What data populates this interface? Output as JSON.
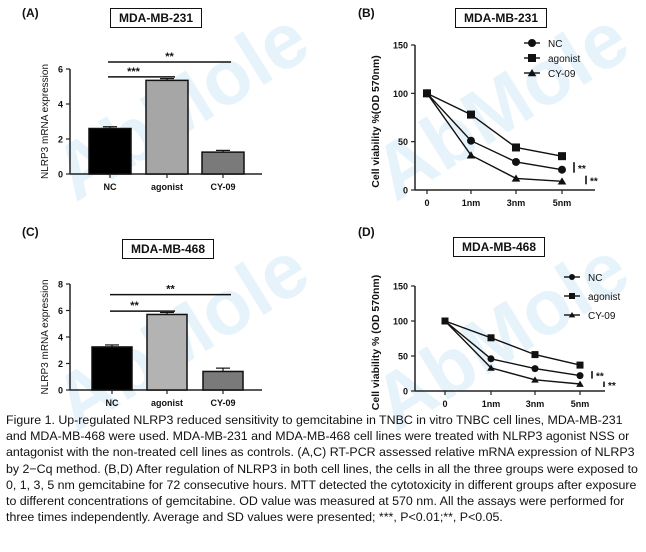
{
  "watermark": "AbMole",
  "panels": [
    {
      "label": "(A)",
      "title": "MDA-MB-231"
    },
    {
      "label": "(B)",
      "title": "MDA-MB-231"
    },
    {
      "label": "(C)",
      "title": "MDA-MB-468"
    },
    {
      "label": "(D)",
      "title": "MDA-MB-468"
    }
  ],
  "caption": "Figure 1. Up-regulated NLRP3 reduced sensitivity to gemcitabine in TNBC in vitro TNBC cell lines, MDA-MB-231 and MDA-MB-468 were used. MDA-MB-231 and MDA-MB-468 cell lines were treated with NLRP3 agonist NSS or antagonist with the non-treated cell lines as controls. (A,C) RT-PCR assessed relative mRNA expression of NLRP3 by 2−Cq method. (B,D) After regulation of NLRP3 in both cell lines, the cells in all the three groups were exposed to 0, 1, 3, 5 nm gemcitabine for 72 consecutive hours. MTT detected the cytotoxicity in different groups after exposure to different concentrations of gemcitabine. OD value was measured at 570 nm. All the assays were performed for three times independently. Average and SD values were presented; ***, P<0.01;**, P<0.05.",
  "chart_data": [
    {
      "type": "bar",
      "title": "MDA-MB-231",
      "panel": "(A)",
      "categories": [
        "NC",
        "agonist",
        "CY-09"
      ],
      "values": [
        2.6,
        5.35,
        1.25
      ],
      "errors": [
        0.1,
        0.1,
        0.1
      ],
      "colors": [
        "#000000",
        "#a6a6a6",
        "#7a7a7a"
      ],
      "ylabel": "NLRP3 mRNA expression",
      "xlabel": "",
      "ylim": [
        0,
        6
      ],
      "yticks": [
        0,
        2,
        4,
        6
      ],
      "significance": [
        {
          "from": 0,
          "to": 1,
          "label": "***",
          "y": 5.55
        },
        {
          "from": 0,
          "to": 2,
          "label": "**",
          "y": 6.4
        }
      ]
    },
    {
      "type": "line",
      "title": "MDA-MB-231",
      "panel": "(B)",
      "x": [
        "0",
        "1nm",
        "3nm",
        "5nm"
      ],
      "series": [
        {
          "name": "NC",
          "marker": "circle",
          "values": [
            100,
            51,
            29,
            21
          ]
        },
        {
          "name": "agonist",
          "marker": "square",
          "values": [
            100,
            78,
            44,
            35
          ]
        },
        {
          "name": "CY-09",
          "marker": "triangle",
          "values": [
            100,
            36,
            12,
            9
          ]
        }
      ],
      "ylabel": "Cell viability %(OD 570nm)",
      "xlabel": "",
      "ylim": [
        0,
        150
      ],
      "yticks": [
        0,
        50,
        100,
        150
      ],
      "legend": "top-right",
      "annotations": [
        {
          "label": "**",
          "between": [
            "agonist",
            "NC"
          ]
        },
        {
          "label": "**",
          "between": [
            "NC",
            "CY-09"
          ]
        }
      ]
    },
    {
      "type": "bar",
      "title": "MDA-MB-468",
      "panel": "(C)",
      "categories": [
        "NC",
        "agonist",
        "CY-09"
      ],
      "values": [
        3.25,
        5.7,
        1.4
      ],
      "errors": [
        0.15,
        0.15,
        0.25
      ],
      "colors": [
        "#000000",
        "#b3b3b3",
        "#7a7a7a"
      ],
      "ylabel": "NLRP3 mRNA expression",
      "xlabel": "",
      "ylim": [
        0,
        8
      ],
      "yticks": [
        0,
        2,
        4,
        6,
        8
      ],
      "significance": [
        {
          "from": 0,
          "to": 1,
          "label": "**",
          "y": 5.95
        },
        {
          "from": 0,
          "to": 2,
          "label": "**",
          "y": 7.2
        }
      ]
    },
    {
      "type": "line",
      "title": "MDA-MB-468",
      "panel": "(D)",
      "x": [
        "0",
        "1nm",
        "3nm",
        "5nm"
      ],
      "series": [
        {
          "name": "NC",
          "marker": "circle",
          "values": [
            100,
            46,
            32,
            22
          ]
        },
        {
          "name": "agonist",
          "marker": "square",
          "values": [
            100,
            76,
            52,
            37
          ]
        },
        {
          "name": "CY-09",
          "marker": "triangle",
          "values": [
            100,
            33,
            16,
            10
          ]
        }
      ],
      "ylabel": "Cell viability % (OD 570nm)",
      "xlabel": "",
      "ylim": [
        0,
        150
      ],
      "yticks": [
        0,
        50,
        100,
        150
      ],
      "legend": "top-right",
      "annotations": [
        {
          "label": "**",
          "between": [
            "agonist",
            "NC"
          ]
        },
        {
          "label": "**",
          "between": [
            "NC",
            "CY-09"
          ]
        }
      ]
    }
  ]
}
